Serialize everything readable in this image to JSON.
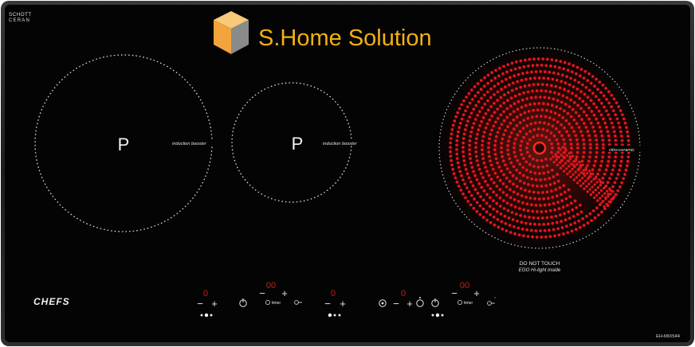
{
  "glass_brand": [
    "SCHOTT",
    "CERAN"
  ],
  "watermark": {
    "text": "S.Home Solution",
    "color": "#f2b111"
  },
  "zones": [
    {
      "symbol": "P",
      "label": "induction booster"
    },
    {
      "symbol": "P",
      "label": "induction booster"
    },
    {
      "label": "vitro-ceramic",
      "warning_lines": [
        "DO NOT TOUCH",
        "EGO Hi-light inside"
      ]
    }
  ],
  "appliance_brand": "CHEFS",
  "model": "EH-MIX544",
  "controls": {
    "minus": "−",
    "plus": "+",
    "timer_label": "timer",
    "displays": [
      "0",
      "00",
      "0",
      "0",
      "00"
    ]
  },
  "colors": {
    "glass": "#050505",
    "frame": "#2b2b2b",
    "element_red": "#e0161c",
    "display_red": "#c41e1e",
    "print": "#e6e6e6"
  }
}
